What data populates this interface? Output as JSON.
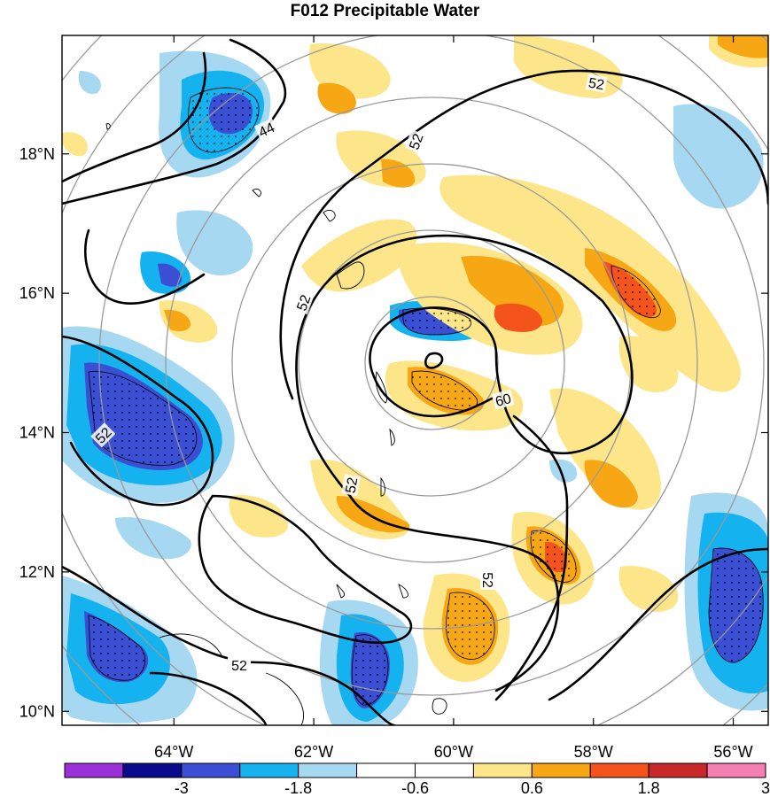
{
  "chart_data": {
    "type": "heatmap",
    "title": "F012 Precipitable Water",
    "x_ticks": [
      "64°W",
      "62°W",
      "60°W",
      "58°W",
      "56°W"
    ],
    "y_ticks": [
      "18°N",
      "16°N",
      "14°N",
      "12°N",
      "10°N"
    ],
    "lon_range": [
      -65.6,
      -55.5
    ],
    "lat_range": [
      9.8,
      19.7
    ],
    "colorbar": {
      "labels": [
        "-3",
        "-1.8",
        "-0.6",
        "0.6",
        "1.8",
        "3"
      ],
      "colors": [
        "#9b30d8",
        "#0a0a8c",
        "#3b4fd4",
        "#15b2f0",
        "#a6d8f2",
        "#ffffff",
        "#ffffff",
        "#fde68a",
        "#f8a714",
        "#f4531c",
        "#c8282a",
        "#f57fb0"
      ]
    },
    "contour_labels": [
      "44",
      "52",
      "52",
      "52",
      "52",
      "52",
      "52",
      "60"
    ],
    "colors": {
      "pos_light": "#fde68a",
      "pos_mid": "#f8a714",
      "pos_high": "#f4531c",
      "neg_light": "#a6d8f2",
      "neg_mid": "#15b2f0",
      "neg_high": "#3b4fd4",
      "neg_max": "#0a0a8c",
      "ring": "#999999",
      "contour": "#000000"
    }
  }
}
